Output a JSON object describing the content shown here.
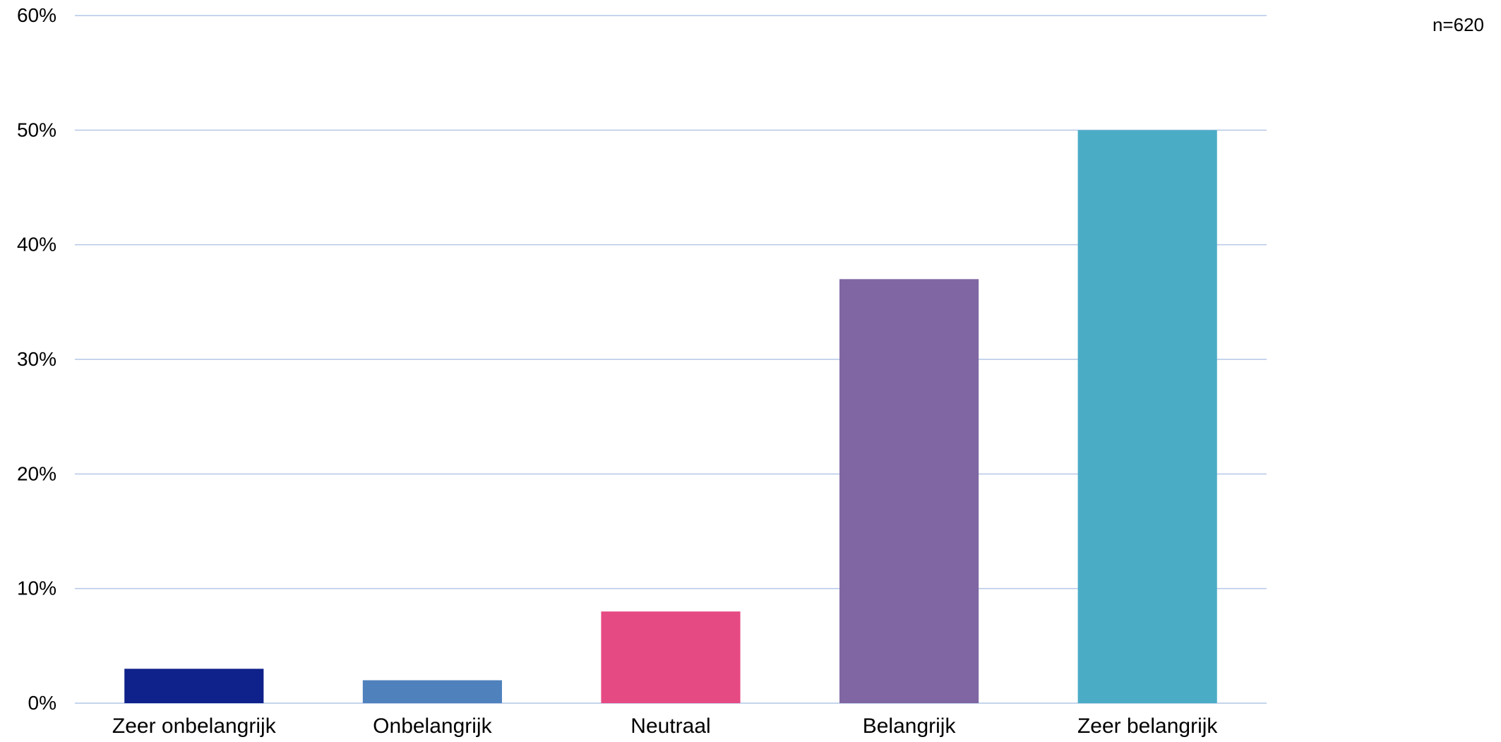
{
  "sample_size": "n=620",
  "chart_data": {
    "type": "bar",
    "categories": [
      "Zeer onbelangrijk",
      "Onbelangrijk",
      "Neutraal",
      "Belangrijk",
      "Zeer belangrijk"
    ],
    "values": [
      3,
      2,
      8,
      37,
      50
    ],
    "colors": [
      "#0F218A",
      "#4F81BD",
      "#E64A83",
      "#8066A2",
      "#4BACC6"
    ],
    "ylim": [
      0,
      60
    ],
    "yticks": [
      0,
      10,
      20,
      30,
      40,
      50,
      60
    ],
    "ytick_labels": [
      "0%",
      "10%",
      "20%",
      "30%",
      "40%",
      "50%",
      "60%"
    ],
    "grid": true,
    "grid_color": "#B4C7E7",
    "title": "",
    "xlabel": "",
    "ylabel": ""
  }
}
